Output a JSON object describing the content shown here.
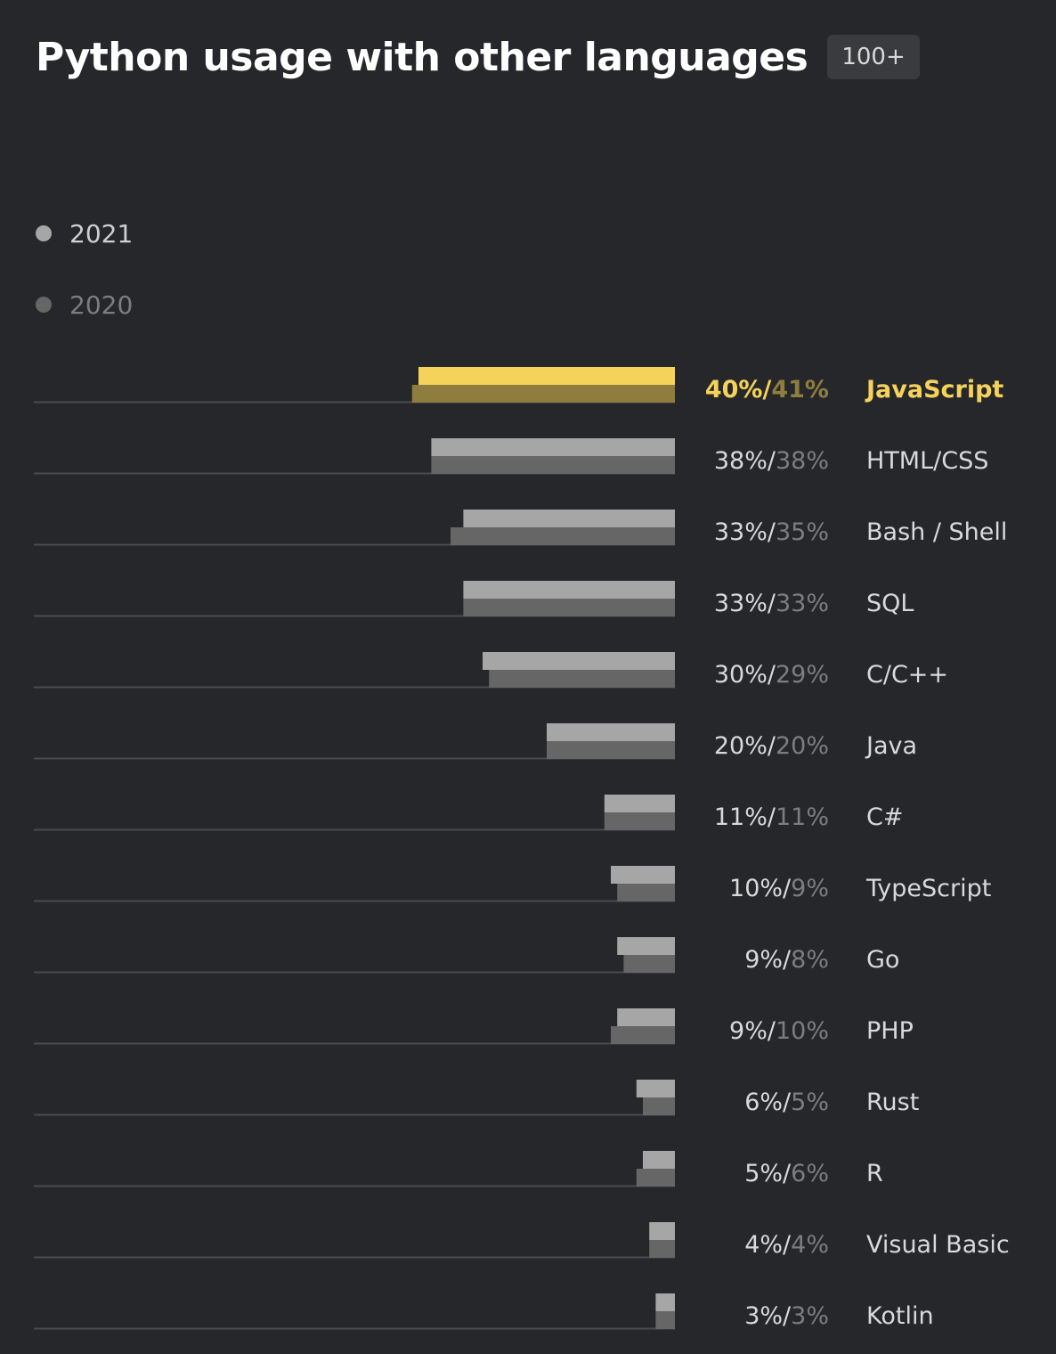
{
  "header": {
    "title": "Python usage with other languages",
    "badge": "100+"
  },
  "legend": [
    {
      "label": "2021",
      "color": "#a6a6a6"
    },
    {
      "label": "2020",
      "color": "#666666"
    }
  ],
  "colors": {
    "background": "#26272b",
    "bar_2021": "#a6a6a6",
    "bar_2020": "#666666",
    "highlight_2021": "#f5d35a",
    "highlight_2020": "#8f7c3f",
    "baseline": "#4a4b4f",
    "value_2021_text": "#d9d9d9",
    "value_2020_text": "#7d7d7d",
    "category_text": "#d9d9d9"
  },
  "chart_data": {
    "type": "bar",
    "orientation": "horizontal",
    "highlight_index": 0,
    "categories": [
      "JavaScript",
      "HTML/CSS",
      "Bash / Shell",
      "SQL",
      "C/C++",
      "Java",
      "C#",
      "TypeScript",
      "Go",
      "PHP",
      "Rust",
      "R",
      "Visual Basic",
      "Kotlin"
    ],
    "series": [
      {
        "name": "2021",
        "values": [
          40,
          38,
          33,
          33,
          30,
          20,
          11,
          10,
          9,
          9,
          6,
          5,
          4,
          3
        ]
      },
      {
        "name": "2020",
        "values": [
          41,
          38,
          35,
          33,
          29,
          20,
          11,
          9,
          8,
          10,
          5,
          6,
          4,
          3
        ]
      }
    ],
    "value_labels_2021": [
      "40%/",
      "38%/",
      "33%/",
      "33%/",
      "30%/",
      "20%/",
      "11%/",
      "10%/",
      "9%/",
      "9%/",
      "6%/",
      "5%/",
      "4%/",
      "3%/"
    ],
    "value_labels_2020": [
      "41%",
      "38%",
      "35%",
      "33%",
      "29%",
      "20%",
      "11%",
      "9%",
      "8%",
      "10%",
      "5%",
      "6%",
      "4%",
      "3%"
    ],
    "xlim": [
      0,
      100
    ],
    "legend_position": "top-left",
    "grid": false
  }
}
